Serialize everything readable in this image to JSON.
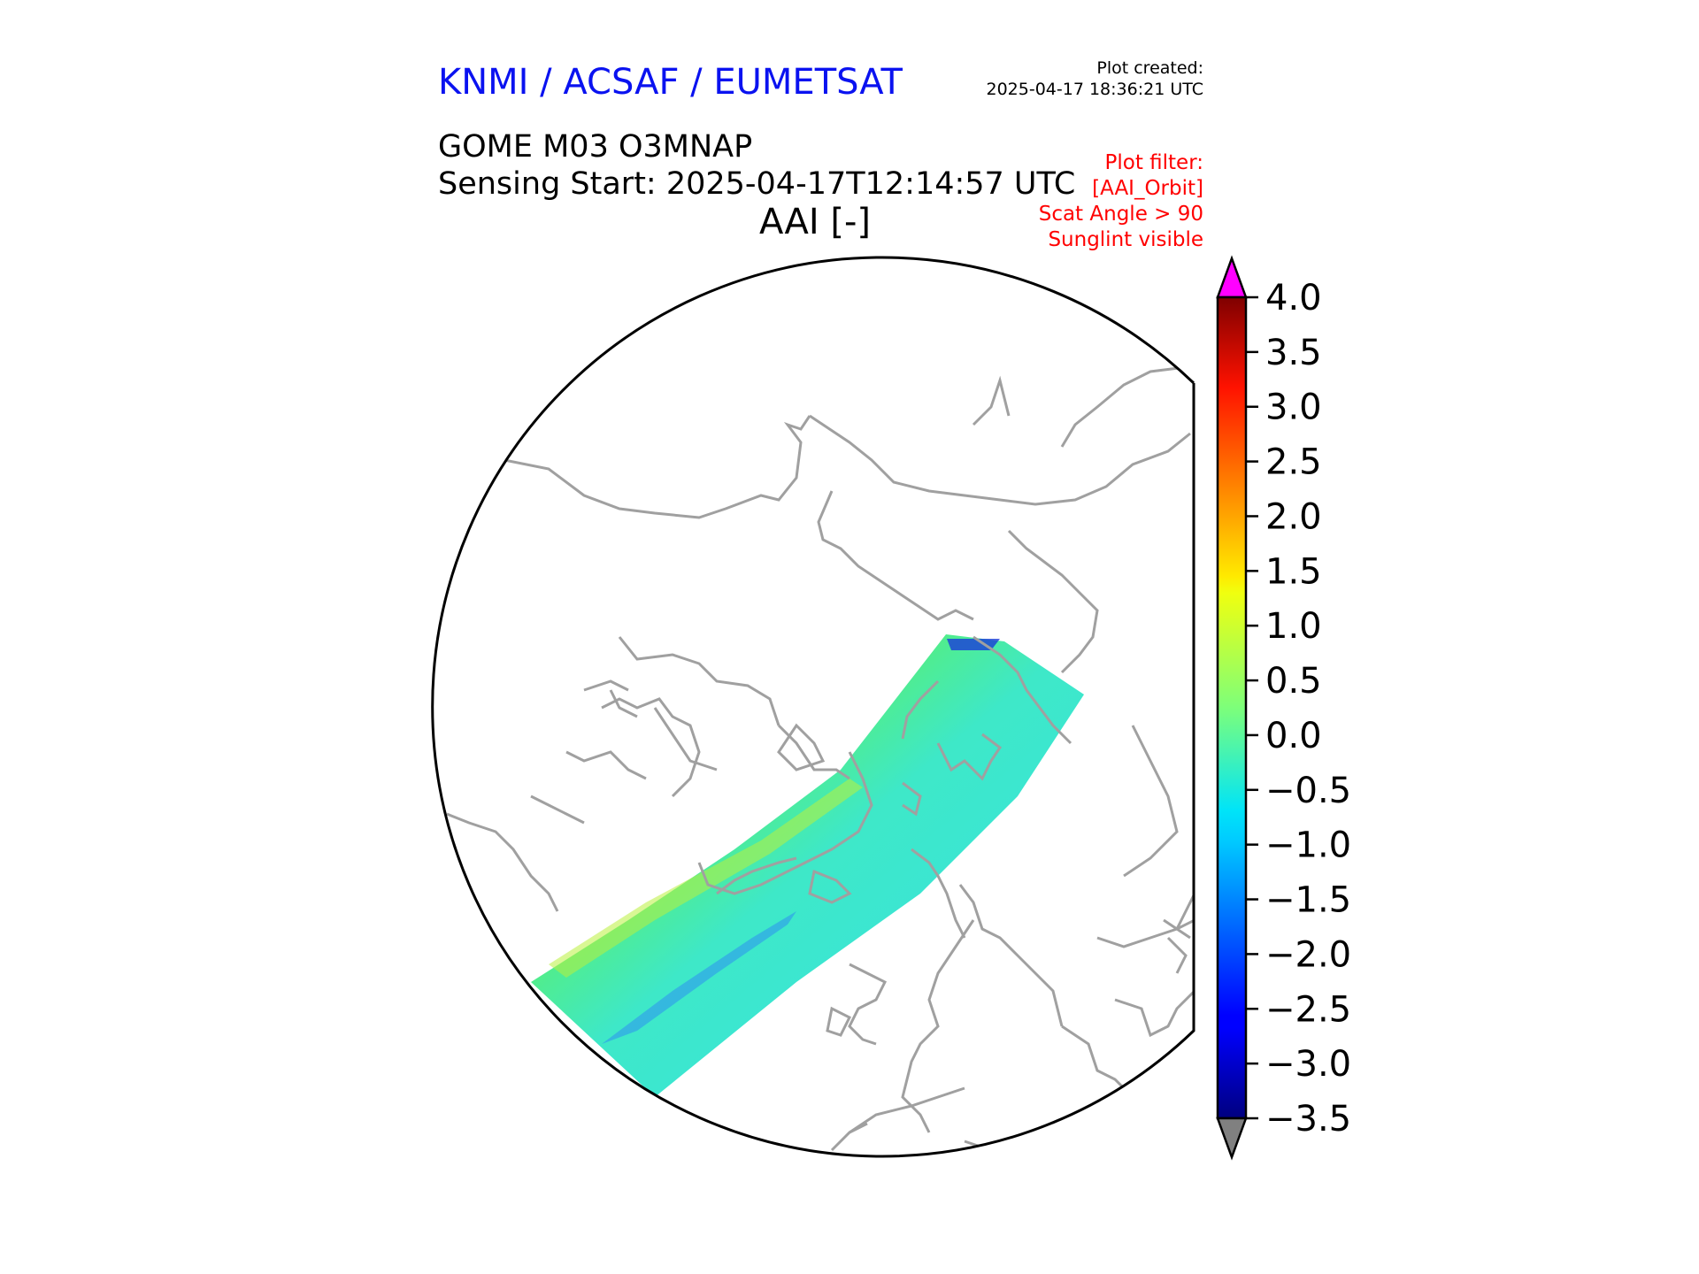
{
  "header": {
    "organization": "KNMI / ACSAF / EUMETSAT",
    "plot_created_label": "Plot created:",
    "plot_created_value": "2025-04-17 18:36:21 UTC",
    "product": "GOME M03 O3MNAP",
    "sensing_start": "Sensing Start: 2025-04-17T12:14:57 UTC",
    "variable": "AAI [-]"
  },
  "filter": {
    "lines": [
      "Plot filter:",
      "[AAI_Orbit]",
      "Scat Angle > 90",
      "Sunglint visible"
    ]
  },
  "colors": {
    "organization": "#0a12f0",
    "filter": "#ff0000",
    "coastline": "#a0a0a0",
    "extend_max": "#ff00ff",
    "extend_min": "#808080"
  },
  "colorbar": {
    "colormap": "jet",
    "vmin": -3.5,
    "vmax": 4.0,
    "tick_labels": [
      "4.0",
      "3.5",
      "3.0",
      "2.5",
      "2.0",
      "1.5",
      "1.0",
      "0.5",
      "0.0",
      "−0.5",
      "−1.0",
      "−1.5",
      "−2.0",
      "−2.5",
      "−3.0",
      "−3.5"
    ],
    "tick_values": [
      4.0,
      3.5,
      3.0,
      2.5,
      2.0,
      1.5,
      1.0,
      0.5,
      0.0,
      -0.5,
      -1.0,
      -1.5,
      -2.0,
      -2.5,
      -3.0,
      -3.5
    ]
  },
  "map": {
    "projection": "north-polar stereographic",
    "swath_typical_aai_range": [
      -1.0,
      1.5
    ]
  }
}
